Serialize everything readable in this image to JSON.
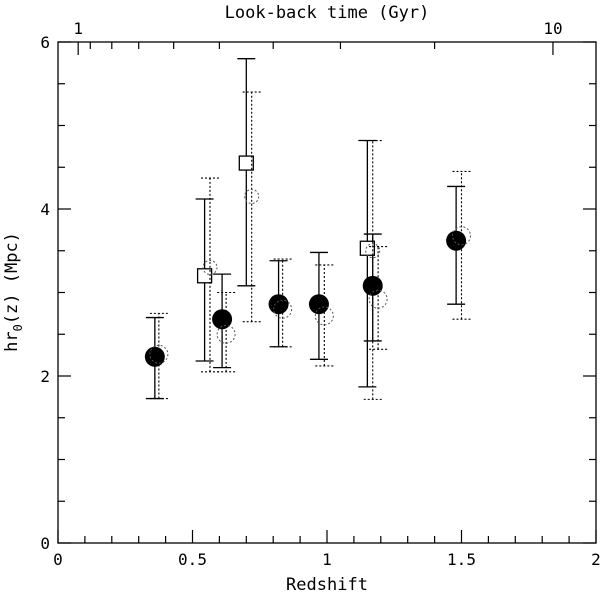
{
  "chart_data": {
    "type": "scatter",
    "title": "",
    "xlabel": "Redshift",
    "ylabel_main": "hr",
    "ylabel_sub": "0",
    "ylabel_rest": "(z) (Mpc)",
    "top_label": "Look-back time (Gyr)",
    "xlim": [
      0,
      2
    ],
    "ylim": [
      0,
      6
    ],
    "x_ticks": [
      0,
      0.5,
      1,
      1.5,
      2
    ],
    "x_tick_labels": [
      "0",
      "0.5",
      "1",
      "1.5",
      "2"
    ],
    "y_ticks": [
      0,
      2,
      4,
      6
    ],
    "y_tick_labels": [
      "0",
      "2",
      "4",
      "6"
    ],
    "top_ticks": [
      {
        "label": "1",
        "z": 0.075
      },
      {
        "label": "10",
        "z": 1.84
      }
    ],
    "grid": false,
    "series": [
      {
        "marker": "filled-circle",
        "line": "solid",
        "points": [
          {
            "x": 0.36,
            "y": 2.23,
            "ylo": 1.73,
            "yhi": 2.7
          },
          {
            "x": 0.61,
            "y": 2.68,
            "ylo": 2.1,
            "yhi": 3.22
          },
          {
            "x": 0.82,
            "y": 2.86,
            "ylo": 2.35,
            "yhi": 3.38
          },
          {
            "x": 0.97,
            "y": 2.86,
            "ylo": 2.2,
            "yhi": 3.48
          },
          {
            "x": 1.17,
            "y": 3.08,
            "ylo": 2.42,
            "yhi": 3.7
          },
          {
            "x": 1.48,
            "y": 3.62,
            "ylo": 2.86,
            "yhi": 4.27
          }
        ]
      },
      {
        "marker": "open-square",
        "line": "solid",
        "points": [
          {
            "x": 0.545,
            "y": 3.2,
            "ylo": 2.18,
            "yhi": 4.12
          },
          {
            "x": 0.7,
            "y": 4.55,
            "ylo": 3.08,
            "yhi": 5.8
          },
          {
            "x": 1.15,
            "y": 3.53,
            "ylo": 1.87,
            "yhi": 4.82
          }
        ]
      },
      {
        "marker": "open-circle",
        "line": "dotted",
        "points": [
          {
            "x": 0.375,
            "y": 2.26,
            "ylo": 1.73,
            "yhi": 2.75
          },
          {
            "x": 0.625,
            "y": 2.5,
            "ylo": 2.05,
            "yhi": 3.0
          },
          {
            "x": 0.835,
            "y": 2.8,
            "ylo": 2.35,
            "yhi": 3.4
          },
          {
            "x": 0.99,
            "y": 2.72,
            "ylo": 2.12,
            "yhi": 3.33
          },
          {
            "x": 1.19,
            "y": 2.92,
            "ylo": 2.32,
            "yhi": 3.55
          },
          {
            "x": 1.5,
            "y": 3.68,
            "ylo": 2.68,
            "yhi": 4.45
          }
        ]
      },
      {
        "marker": "dotted-circle",
        "line": "dotted",
        "points": [
          {
            "x": 0.565,
            "y": 3.3,
            "ylo": 2.05,
            "yhi": 4.37
          },
          {
            "x": 0.72,
            "y": 4.15,
            "ylo": 2.65,
            "yhi": 5.4
          },
          {
            "x": 1.17,
            "y": 3.5,
            "ylo": 1.72,
            "yhi": 4.82
          }
        ]
      }
    ]
  }
}
